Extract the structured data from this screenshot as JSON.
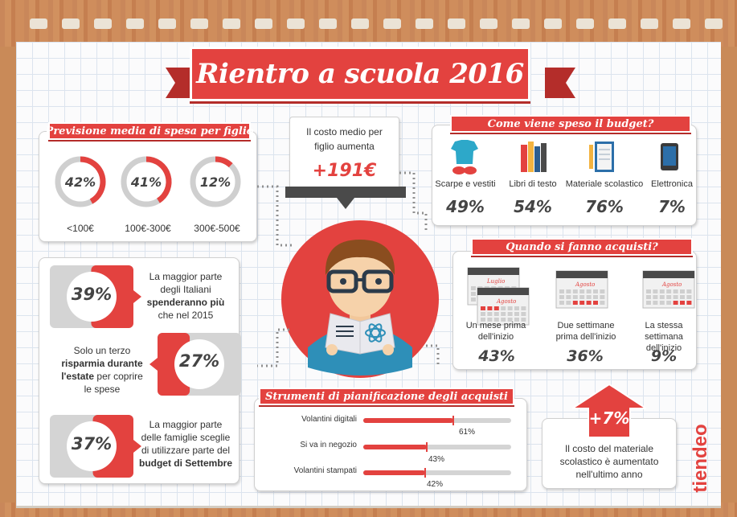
{
  "title": "Rientro a scuola 2016",
  "colors": {
    "accent": "#e3423f",
    "gray": "#cccccc",
    "text": "#444444",
    "wood": "#c9875a"
  },
  "spesa": {
    "header": "Previsione media di spesa per figlio",
    "items": [
      {
        "pct": "42%",
        "label": "<100€",
        "value": 0.42
      },
      {
        "pct": "41%",
        "label": "100€-300€",
        "value": 0.41
      },
      {
        "pct": "12%",
        "label": "300€-500€",
        "value": 0.12
      }
    ]
  },
  "costo": {
    "line1": "Il costo medio per",
    "line2": "figlio aumenta",
    "value": "+191€"
  },
  "budget": {
    "header": "Come viene speso il budget?",
    "items": [
      {
        "label": "Scarpe e vestiti",
        "pct": "49%",
        "icon": "clothes-icon"
      },
      {
        "label": "Libri di testo",
        "pct": "54%",
        "icon": "books-icon"
      },
      {
        "label": "Materiale scolastico",
        "pct": "76%",
        "icon": "notebook-icon"
      },
      {
        "label": "Elettronica",
        "pct": "7%",
        "icon": "tablet-icon"
      }
    ]
  },
  "acquisti": {
    "header": "Quando si fanno acquisti?",
    "items": [
      {
        "line1": "Un mese prima",
        "line2": "dell'inizio",
        "pct": "43%",
        "month1": "Luglio",
        "month2": "Agosto"
      },
      {
        "line1": "Due settimane",
        "line2": "prima dell'inizio",
        "pct": "36%",
        "month1": "Agosto"
      },
      {
        "line1": "La stessa settimana",
        "line2": "dell'inizio",
        "pct": "9%",
        "month1": "Agosto"
      }
    ]
  },
  "facts": [
    {
      "pct": "39%",
      "value": 0.39,
      "lines": [
        "La maggior parte",
        "degli Italiani"
      ],
      "bold": [
        "spenderanno più"
      ],
      "after": [
        "che nel 2015"
      ]
    },
    {
      "pct": "27%",
      "value": 0.27,
      "lines": [
        "Solo un terzo"
      ],
      "bold": [
        "risparmia durante",
        "l'estate"
      ],
      "after": [
        "per coprire",
        "le spese"
      ]
    },
    {
      "pct": "37%",
      "value": 0.37,
      "lines": [
        "La maggior parte",
        "delle famiglie sceglie",
        "di utilizzare parte del"
      ],
      "bold": [
        "budget di Settembre"
      ],
      "after": []
    }
  ],
  "strumenti": {
    "header": "Strumenti di pianificazione degli acquisti",
    "items": [
      {
        "label": "Volantini digitali",
        "pct": "61%",
        "value": 0.61
      },
      {
        "label": "Si va in negozio",
        "pct": "43%",
        "value": 0.43
      },
      {
        "label": "Volantini stampati",
        "pct": "42%",
        "value": 0.42
      }
    ]
  },
  "materiale": {
    "pct": "+7%",
    "line1": "Il costo del materiale",
    "line2": "scolastico è aumentato",
    "line3": "nell'ultimo anno"
  },
  "brand": "tiendeo"
}
